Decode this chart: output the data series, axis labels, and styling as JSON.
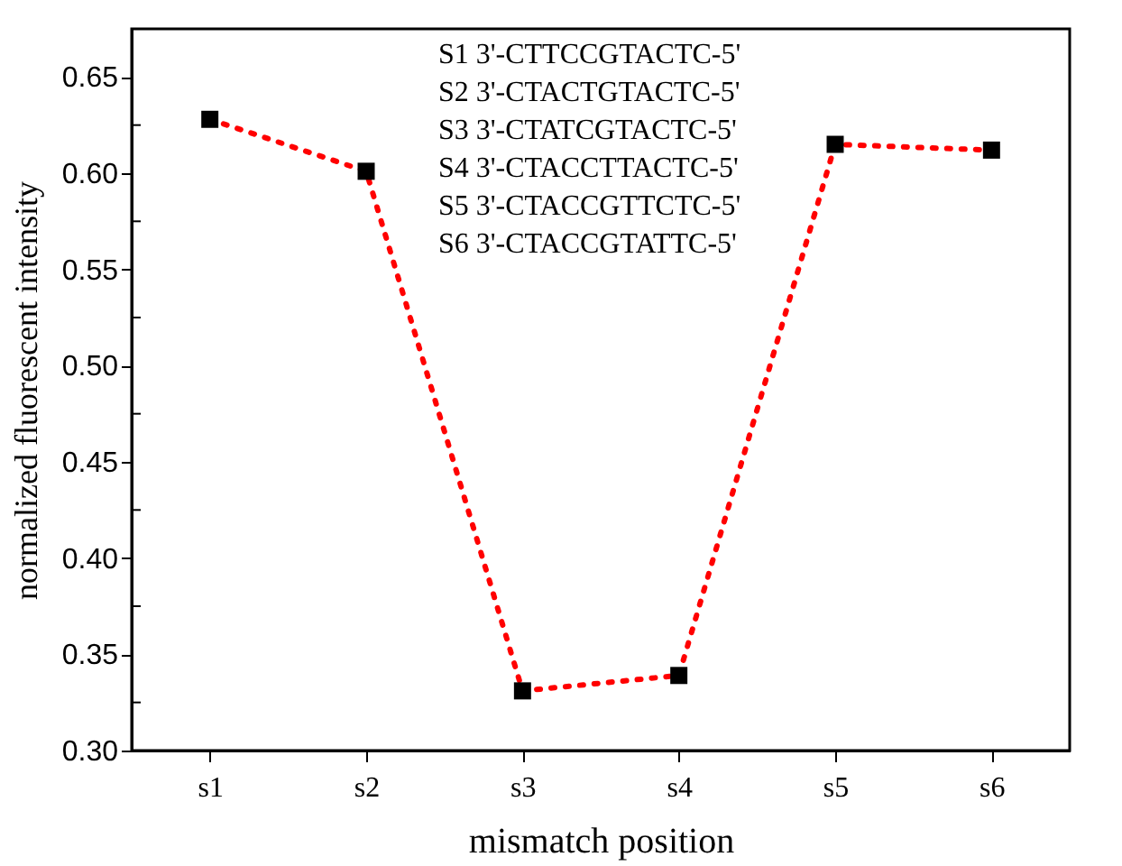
{
  "chart_data": {
    "type": "line",
    "xlabel": "mismatch position",
    "ylabel": "normalized fluorescent intensity",
    "categories": [
      "s1",
      "s2",
      "s3",
      "s4",
      "s5",
      "s6"
    ],
    "series": [
      {
        "color": "#ff0000",
        "values": [
          0.628,
          0.601,
          0.331,
          0.339,
          0.615,
          0.612
        ]
      }
    ],
    "marker": "square",
    "line_style": "dotted",
    "ylim": [
      0.3,
      0.675
    ],
    "yticks": [
      {
        "value": 0.3,
        "label": "0.30"
      },
      {
        "value": 0.325,
        "label": null
      },
      0.35,
      {
        "value": 0.375,
        "label": null
      },
      {
        "value": 0.4,
        "label": "0.40"
      },
      {
        "value": 0.425,
        "label": null
      },
      0.45,
      {
        "value": 0.475,
        "label": null
      },
      {
        "value": 0.5,
        "label": "0.50"
      },
      {
        "value": 0.525,
        "label": null
      },
      0.55,
      {
        "value": 0.575,
        "label": null
      },
      {
        "value": 0.6,
        "label": "0.60"
      },
      {
        "value": 0.625,
        "label": null
      },
      0.65
    ],
    "annotations": [
      "S1   3'-CTTCCGTACTC-5'",
      "S2   3'-CTACTGTACTC-5'",
      "S3   3'-CTATCGTACTC-5'",
      "S4   3'-CTACCTTACTC-5'",
      "S5   3'-CTACCGTTCTC-5'",
      "S6   3'-CTACCGTATTC-5'"
    ],
    "grid": false
  }
}
